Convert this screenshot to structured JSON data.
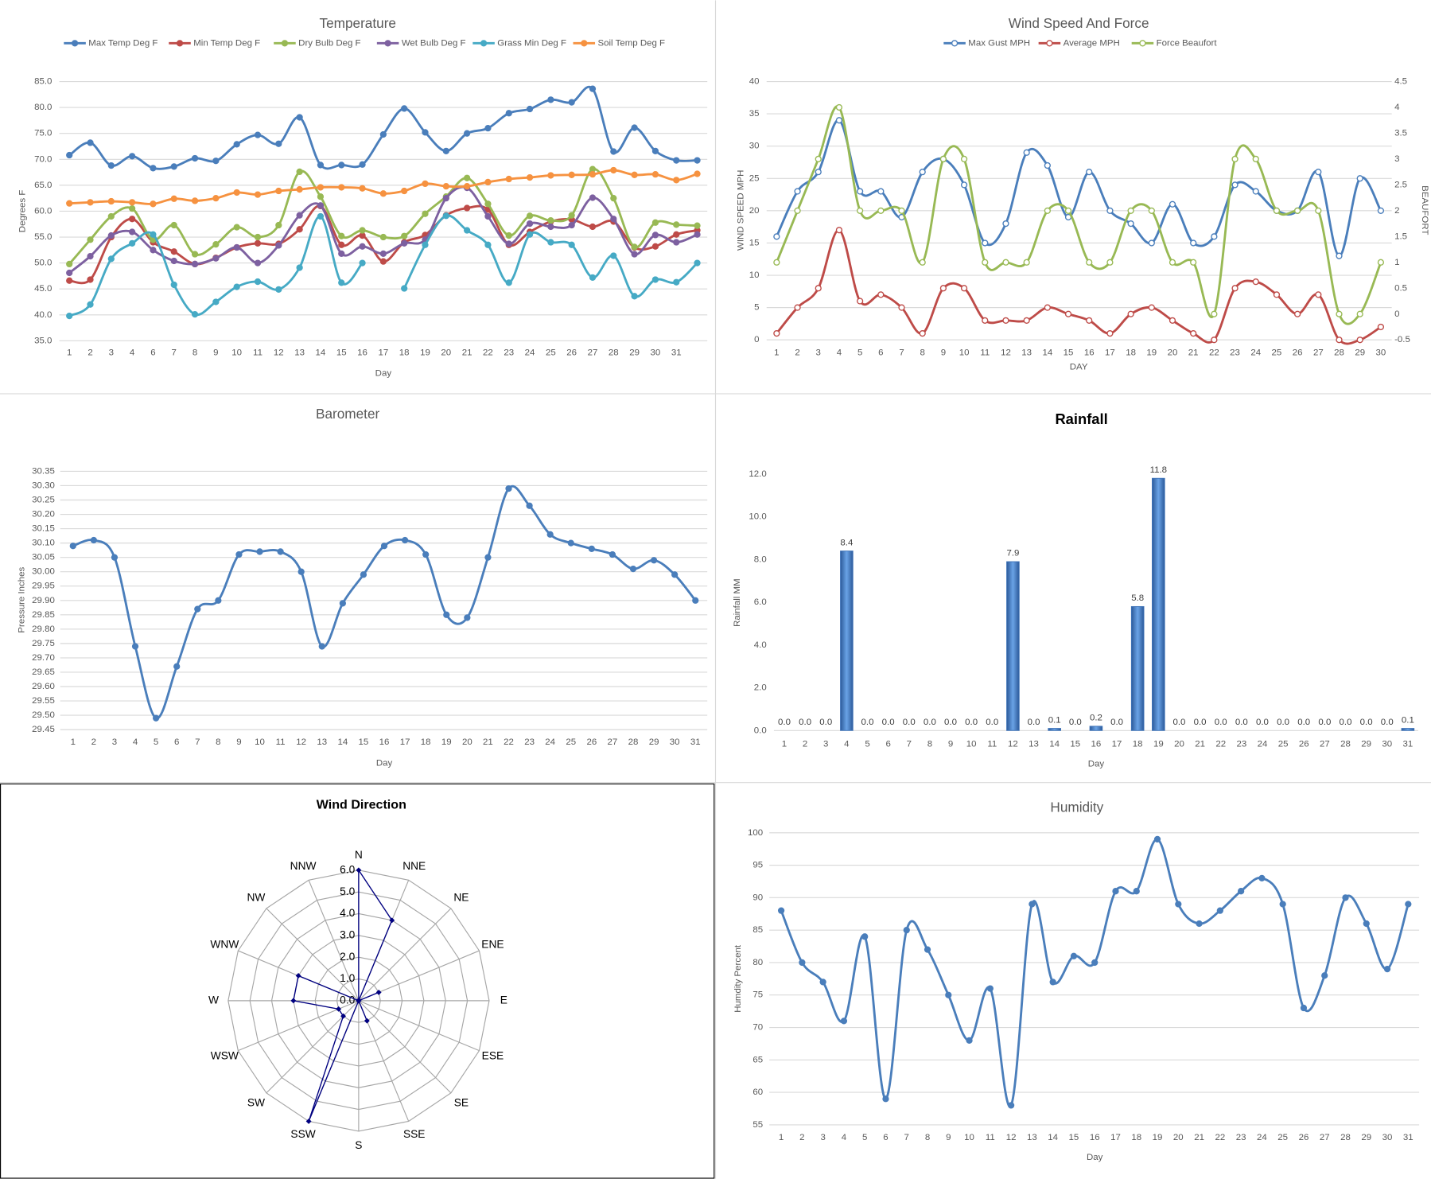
{
  "chart_data": [
    {
      "type": "line",
      "title": "Temperature",
      "x_label": "Day",
      "y_label": "Degrees F",
      "categories": [
        1,
        2,
        3,
        4,
        6,
        7,
        8,
        9,
        10,
        11,
        12,
        13,
        14,
        15,
        16,
        17,
        18,
        19,
        20,
        21,
        22,
        23,
        24,
        25,
        26,
        27,
        28,
        29,
        30,
        31,
        null
      ],
      "ylim": [
        35,
        85
      ],
      "yticks": [
        {
          "value": 35,
          "label": "35.0"
        },
        {
          "value": 40,
          "label": "40.0"
        },
        {
          "value": 45,
          "label": "45.0"
        },
        {
          "value": 50,
          "label": "50.0"
        },
        {
          "value": 55,
          "label": "55.0"
        },
        {
          "value": 60,
          "label": "60.0"
        },
        {
          "value": 65,
          "label": "65.0"
        },
        {
          "value": 70,
          "label": "70.0"
        },
        {
          "value": 75,
          "label": "75.0"
        },
        {
          "value": 80,
          "label": "80.0"
        },
        {
          "value": 85,
          "label": "85.0"
        }
      ],
      "grid": true,
      "legend": "top",
      "series": [
        {
          "name": "Max Temp Deg F",
          "color": "#4a7ebb",
          "values": [
            70.8,
            73.2,
            68.8,
            70.6,
            68.3,
            68.6,
            70.2,
            69.7,
            72.9,
            74.7,
            73.0,
            78.1,
            68.9,
            68.9,
            69.0,
            74.8,
            79.8,
            75.2,
            71.6,
            75.0,
            76.0,
            78.9,
            79.7,
            81.5,
            81.0,
            83.6,
            71.5,
            76.1,
            71.6,
            69.8,
            69.8
          ]
        },
        {
          "name": "Min Temp Deg F",
          "color": "#be4b48",
          "values": [
            46.6,
            46.8,
            55.0,
            58.5,
            54.0,
            52.2,
            49.8,
            51.0,
            53.0,
            53.8,
            53.7,
            56.5,
            61.0,
            53.5,
            55.3,
            50.3,
            54.0,
            55.4,
            59.2,
            60.6,
            60.3,
            53.5,
            56.0,
            58.0,
            58.4,
            57.0,
            58.0,
            53.0,
            53.2,
            55.5,
            56.3
          ]
        },
        {
          "name": "Dry Bulb Deg F",
          "color": "#98b954",
          "values": [
            49.8,
            54.5,
            59.0,
            60.5,
            54.5,
            57.3,
            51.7,
            53.6,
            56.9,
            55.0,
            57.3,
            67.6,
            62.8,
            55.2,
            56.3,
            55.0,
            55.2,
            59.5,
            62.8,
            66.4,
            61.4,
            55.3,
            59.1,
            58.2,
            59.2,
            68.1,
            62.5,
            53.1,
            57.8,
            57.4,
            57.2
          ]
        },
        {
          "name": "Wet Bulb Deg F",
          "color": "#7d60a0",
          "values": [
            48.1,
            51.3,
            55.3,
            56.0,
            52.5,
            50.4,
            49.8,
            50.9,
            53.0,
            50.0,
            53.4,
            59.2,
            61.1,
            51.8,
            53.2,
            51.8,
            53.8,
            54.5,
            62.5,
            64.5,
            59.0,
            53.7,
            57.6,
            57.0,
            57.3,
            62.6,
            58.5,
            51.7,
            55.4,
            54.0,
            55.5
          ]
        },
        {
          "name": "Grass Min Deg F",
          "color": "#46aac5",
          "values": [
            39.8,
            42.0,
            50.8,
            53.8,
            55.5,
            45.8,
            40.1,
            42.5,
            45.4,
            46.4,
            44.9,
            49.1,
            59.0,
            46.2,
            50.0,
            null,
            45.1,
            53.5,
            59.1,
            56.3,
            53.5,
            46.2,
            55.5,
            54.0,
            53.5,
            47.2,
            51.4,
            43.6,
            46.8,
            46.3,
            50.0
          ]
        },
        {
          "name": "Soil Temp Deg F",
          "color": "#f69240",
          "values": [
            61.5,
            61.7,
            61.9,
            61.7,
            61.4,
            62.4,
            62.0,
            62.5,
            63.6,
            63.2,
            63.9,
            64.2,
            64.6,
            64.6,
            64.4,
            63.4,
            63.9,
            65.3,
            64.8,
            64.8,
            65.6,
            66.2,
            66.5,
            66.9,
            67.0,
            67.1,
            67.9,
            67.0,
            67.1,
            66.0,
            67.2
          ]
        }
      ]
    },
    {
      "type": "line",
      "title": "Wind Speed And Force",
      "x_label": "DAY",
      "y_label": "WIND SPEED MPH",
      "y2_label": "BEAUFORT",
      "categories": [
        1,
        2,
        3,
        4,
        5,
        6,
        7,
        8,
        9,
        10,
        11,
        12,
        13,
        14,
        15,
        16,
        17,
        18,
        19,
        20,
        21,
        22,
        23,
        24,
        25,
        26,
        27,
        28,
        29,
        30
      ],
      "ylim": [
        0,
        40
      ],
      "yticks": [
        0,
        5,
        10,
        15,
        20,
        25,
        30,
        35,
        40
      ],
      "y2lim": [
        -0.5,
        4.5
      ],
      "y2ticks": [
        -0.5,
        0,
        0.5,
        1,
        1.5,
        2,
        2.5,
        3,
        3.5,
        4,
        4.5
      ],
      "grid": true,
      "legend": "top",
      "hollow_markers": true,
      "series": [
        {
          "name": "Max Gust MPH",
          "color": "#4a7ebb",
          "values": [
            16,
            23,
            26,
            34,
            23,
            23,
            19,
            26,
            28,
            24,
            15,
            18,
            29,
            27,
            19,
            26,
            20,
            18,
            15,
            21,
            15,
            16,
            24,
            23,
            20,
            20,
            26,
            13,
            25,
            20
          ]
        },
        {
          "name": "Average MPH",
          "color": "#be4b48",
          "values": [
            1,
            5,
            8,
            17,
            6,
            7,
            5,
            1,
            8,
            8,
            3,
            3,
            3,
            5,
            4,
            3,
            1,
            4,
            5,
            3,
            1,
            0,
            8,
            9,
            7,
            4,
            7,
            0,
            0,
            2
          ]
        },
        {
          "name": "Force Beaufort",
          "color": "#98b954",
          "axis": "y2",
          "values": [
            1,
            2,
            3,
            4,
            2,
            2,
            2,
            1,
            3,
            3,
            1,
            1,
            1,
            2,
            2,
            1,
            1,
            2,
            2,
            1,
            1,
            0,
            3,
            3,
            2,
            2,
            2,
            0,
            0,
            1
          ]
        }
      ]
    },
    {
      "type": "line",
      "title": "Barometer",
      "x_label": "Day",
      "y_label": "Pressure Inches",
      "categories": [
        1,
        2,
        3,
        4,
        5,
        6,
        7,
        8,
        9,
        10,
        11,
        12,
        13,
        14,
        15,
        16,
        17,
        18,
        19,
        20,
        21,
        22,
        23,
        24,
        25,
        26,
        27,
        28,
        29,
        30,
        31
      ],
      "ylim": [
        29.45,
        30.35
      ],
      "yticks": [
        29.45,
        {
          "value": 29.5,
          "label": "29.50"
        },
        29.55,
        {
          "value": 29.6,
          "label": "29.60"
        },
        29.65,
        {
          "value": 29.7,
          "label": "29.70"
        },
        29.75,
        {
          "value": 29.8,
          "label": "29.80"
        },
        29.85,
        {
          "value": 29.9,
          "label": "29.90"
        },
        29.95,
        {
          "value": 30,
          "label": "30.00"
        },
        30.05,
        {
          "value": 30.1,
          "label": "30.10"
        },
        30.15,
        {
          "value": 30.2,
          "label": "30.20"
        },
        30.25,
        {
          "value": 30.3,
          "label": "30.30"
        },
        30.35
      ],
      "grid": true,
      "series": [
        {
          "name": null,
          "color": "#4a7ebb",
          "values": [
            30.09,
            30.11,
            30.05,
            29.74,
            29.49,
            29.67,
            29.87,
            29.9,
            30.06,
            30.07,
            30.07,
            30.0,
            29.74,
            29.89,
            29.99,
            30.09,
            30.11,
            30.06,
            29.85,
            29.84,
            30.05,
            30.29,
            30.23,
            30.13,
            30.1,
            30.08,
            30.06,
            30.01,
            30.04,
            29.99,
            29.9
          ]
        }
      ]
    },
    {
      "type": "bar",
      "title": "Rainfall",
      "x_label": "Day",
      "y_label": "Rainfall MM",
      "categories": [
        1,
        2,
        3,
        4,
        5,
        6,
        7,
        8,
        9,
        10,
        11,
        12,
        13,
        14,
        15,
        16,
        17,
        18,
        19,
        20,
        21,
        22,
        23,
        24,
        25,
        26,
        27,
        28,
        29,
        30,
        31
      ],
      "values": [
        0,
        0,
        0,
        8.4,
        0,
        0,
        0,
        0,
        0,
        0,
        0,
        7.9,
        0,
        0.1,
        0,
        0.2,
        0,
        5.8,
        11.8,
        0,
        0,
        0,
        0,
        0,
        0,
        0,
        0,
        0,
        0,
        0,
        0.1
      ],
      "value_labels": [
        "0.0",
        "0.0",
        "0.0",
        "8.4",
        "0.0",
        "0.0",
        "0.0",
        "0.0",
        "0.0",
        "0.0",
        "0.0",
        "7.9",
        "0.0",
        "0.1",
        "0.0",
        "0.2",
        "0.0",
        "5.8",
        "11.8",
        "0.0",
        "0.0",
        "0.0",
        "0.0",
        "0.0",
        "0.0",
        "0.0",
        "0.0",
        "0.0",
        "0.0",
        "0.0",
        "0.1"
      ],
      "color": "#3d72b8",
      "ylim": [
        0,
        12
      ],
      "yticks": [
        {
          "value": 0,
          "label": "0.0"
        },
        {
          "value": 2,
          "label": "2.0"
        },
        {
          "value": 4,
          "label": "4.0"
        },
        {
          "value": 6,
          "label": "6.0"
        },
        {
          "value": 8,
          "label": "8.0"
        },
        {
          "value": 10,
          "label": "10.0"
        },
        {
          "value": 12,
          "label": "12.0"
        }
      ],
      "grid": false
    },
    {
      "type": "radar",
      "title": "Wind Direction",
      "categories": [
        "N",
        "NNE",
        "NE",
        "ENE",
        "E",
        "ESE",
        "SE",
        "SSE",
        "S",
        "SSW",
        "SW",
        "WSW",
        "W",
        "WNW",
        "NW",
        "NNW"
      ],
      "values": [
        6,
        4,
        0,
        1,
        0,
        0,
        0,
        1,
        0,
        6,
        1,
        1,
        3,
        3,
        0,
        0
      ],
      "color": "#000080",
      "ylim": [
        0,
        6
      ],
      "yticks": [
        {
          "value": 0,
          "label": "0.0"
        },
        {
          "value": 1,
          "label": "1.0"
        },
        {
          "value": 2,
          "label": "2.0"
        },
        {
          "value": 3,
          "label": "3.0"
        },
        {
          "value": 4,
          "label": "4.0"
        },
        {
          "value": 5,
          "label": "5.0"
        },
        {
          "value": 6,
          "label": "6.0"
        }
      ]
    },
    {
      "type": "line",
      "title": "Humidity",
      "x_label": "Day",
      "y_label": "Humdity Percent",
      "categories": [
        1,
        2,
        3,
        4,
        5,
        6,
        7,
        8,
        9,
        10,
        11,
        12,
        13,
        14,
        15,
        16,
        17,
        18,
        19,
        20,
        21,
        22,
        23,
        24,
        25,
        26,
        27,
        28,
        29,
        30,
        31
      ],
      "ylim": [
        55,
        100
      ],
      "yticks": [
        55,
        60,
        65,
        70,
        75,
        80,
        85,
        90,
        95,
        100
      ],
      "grid": true,
      "series": [
        {
          "name": null,
          "color": "#4a7ebb",
          "values": [
            88,
            80,
            77,
            71,
            84,
            59,
            85,
            82,
            75,
            68,
            76,
            58,
            89,
            77,
            81,
            80,
            91,
            91,
            99,
            89,
            86,
            88,
            91,
            93,
            89,
            73,
            78,
            90,
            86,
            79,
            89
          ]
        }
      ]
    }
  ]
}
